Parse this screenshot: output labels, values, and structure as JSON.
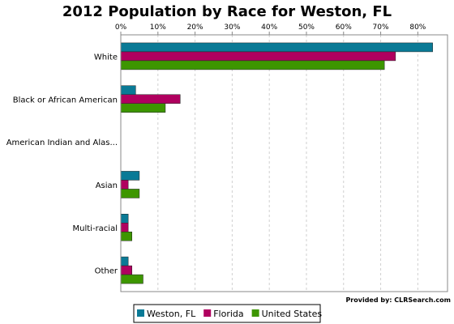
{
  "chart_data": {
    "type": "bar",
    "orientation": "horizontal",
    "title": "2012 Population by Race for Weston, FL",
    "credit": "Provided by: CLRSearch.com",
    "categories": [
      "White",
      "Black or African American",
      "American Indian and Alas...",
      "Asian",
      "Multi-racial",
      "Other"
    ],
    "series": [
      {
        "name": "Weston, FL",
        "color": "#0a7a96",
        "values": [
          84,
          4,
          0,
          5,
          2,
          2
        ]
      },
      {
        "name": "Florida",
        "color": "#b0005f",
        "values": [
          74,
          16,
          0,
          2,
          2,
          3
        ]
      },
      {
        "name": "United States",
        "color": "#3d9600",
        "values": [
          71,
          12,
          0,
          5,
          3,
          6
        ]
      }
    ],
    "xlim": [
      0,
      88
    ],
    "ticks": [
      0,
      10,
      20,
      30,
      40,
      50,
      60,
      70,
      80
    ],
    "tick_labels": [
      "0%",
      "10%",
      "20%",
      "30%",
      "40%",
      "50%",
      "60%",
      "70%",
      "80%"
    ],
    "grid": true,
    "legend_position": "bottom-left"
  }
}
